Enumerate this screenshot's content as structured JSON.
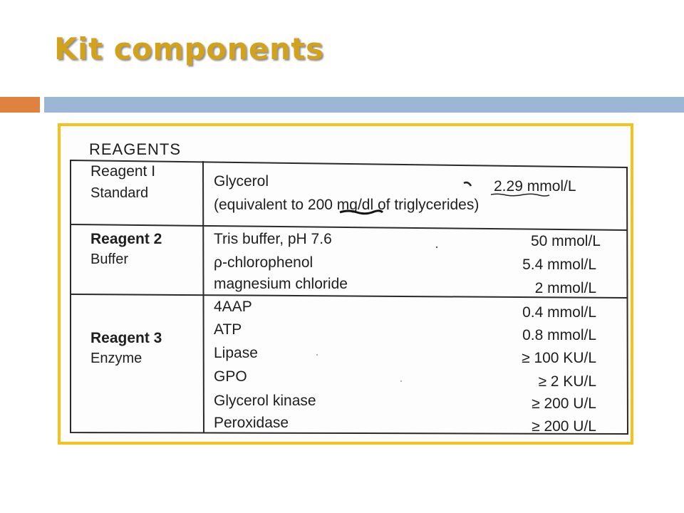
{
  "title": "Kit components",
  "colors": {
    "title": "#d3a21c",
    "accent_orange": "#df8240",
    "accent_blue": "#9bb7d5",
    "frame_border": "#f5c11b"
  },
  "figure": {
    "heading": "REAGENTS",
    "reagents": [
      {
        "name": "Reagent I",
        "role": "Standard",
        "components": [
          {
            "label": "Glycerol",
            "value": "2.29 mmol/L"
          },
          {
            "label": "(equivalent to 200 mg/dl of triglycerides)",
            "value": ""
          }
        ]
      },
      {
        "name": "Reagent 2",
        "role": "Buffer",
        "components": [
          {
            "label": "Tris buffer, pH 7.6",
            "value": "50 mmol/L"
          },
          {
            "label": "ρ-chlorophenol",
            "value": "5.4 mmol/L"
          },
          {
            "label": "magnesium chloride",
            "value": "2 mmol/L"
          }
        ]
      },
      {
        "name": "Reagent 3",
        "role": "Enzyme",
        "components": [
          {
            "label": "4AAP",
            "value": "0.4 mmol/L"
          },
          {
            "label": "ATP",
            "value": "0.8 mmol/L"
          },
          {
            "label": "Lipase",
            "value": "≥ 100 KU/L"
          },
          {
            "label": "GPO",
            "value": "≥ 2 KU/L"
          },
          {
            "label": "Glycerol kinase",
            "value": "≥ 200 U/L"
          },
          {
            "label": "Peroxidase",
            "value": "≥ 200 U/L"
          }
        ]
      }
    ]
  }
}
